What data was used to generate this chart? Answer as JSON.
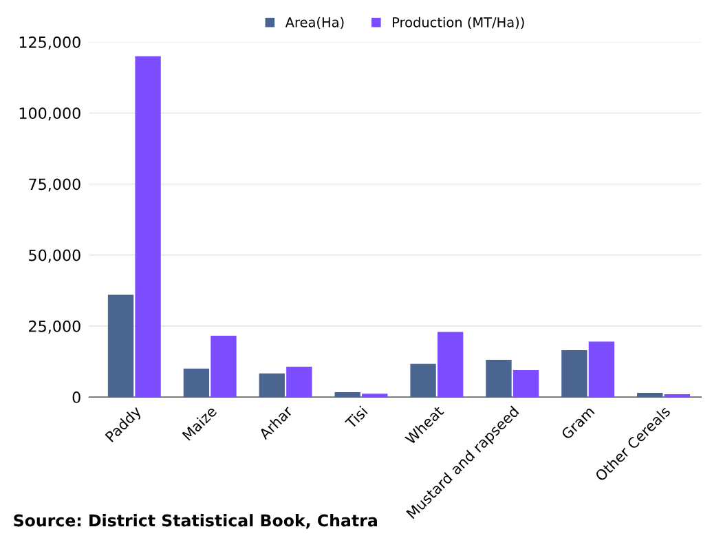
{
  "chart_data": {
    "type": "bar",
    "categories": [
      "Paddy",
      "Maize",
      "Arhar",
      "Tisi",
      "Wheat",
      "Mustard and rapseed",
      "Gram",
      "Other Cereals"
    ],
    "series": [
      {
        "name": "Area(Ha)",
        "color": "#4a6590",
        "values": [
          36000,
          10000,
          8300,
          1700,
          11700,
          13100,
          16500,
          1500
        ]
      },
      {
        "name": "Production (MT/Ha))",
        "color": "#7b4dff",
        "values": [
          120000,
          21600,
          10700,
          1200,
          22900,
          9500,
          19500,
          1000
        ]
      }
    ],
    "ylim": [
      0,
      125000
    ],
    "yticks": [
      {
        "value": 0,
        "label": "0"
      },
      {
        "value": 25000,
        "label": "25,000"
      },
      {
        "value": 50000,
        "label": "50,000"
      },
      {
        "value": 75000,
        "label": "75,000"
      },
      {
        "value": 100000,
        "label": "100,000"
      },
      {
        "value": 125000,
        "label": "125,000"
      }
    ],
    "grid": "y",
    "legend": "top",
    "annotations": [
      "Source: District Statistical Book, Chatra"
    ]
  }
}
